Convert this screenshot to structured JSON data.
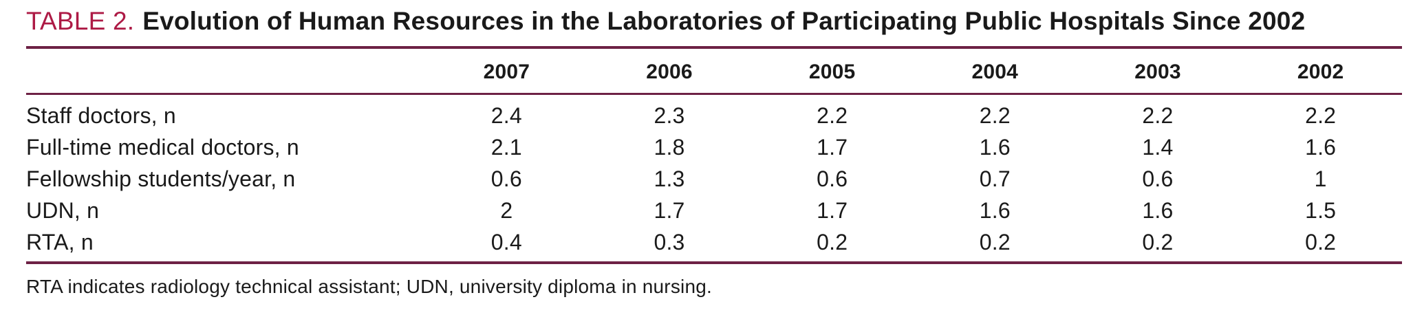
{
  "colors": {
    "accent_label": "#ad1a45",
    "rule": "#6d2145",
    "text": "#1a1a1a",
    "background": "#ffffff"
  },
  "title": {
    "label": "TABLE 2.",
    "text": "Evolution of Human Resources in the Laboratories of Participating Public Hospitals Since 2002"
  },
  "table": {
    "columns": [
      "2007",
      "2006",
      "2005",
      "2004",
      "2003",
      "2002"
    ],
    "rows": [
      {
        "label": "Staff doctors, n",
        "values": [
          "2.4",
          "2.3",
          "2.2",
          "2.2",
          "2.2",
          "2.2"
        ]
      },
      {
        "label": "Full-time medical doctors, n",
        "values": [
          "2.1",
          "1.8",
          "1.7",
          "1.6",
          "1.4",
          "1.6"
        ]
      },
      {
        "label": "Fellowship students/year, n",
        "values": [
          "0.6",
          "1.3",
          "0.6",
          "0.7",
          "0.6",
          "1"
        ]
      },
      {
        "label": "UDN, n",
        "values": [
          "2",
          "1.7",
          "1.7",
          "1.6",
          "1.6",
          "1.5"
        ]
      },
      {
        "label": "RTA, n",
        "values": [
          "0.4",
          "0.3",
          "0.2",
          "0.2",
          "0.2",
          "0.2"
        ]
      }
    ]
  },
  "footnote": "RTA indicates radiology technical assistant; UDN, university diploma in nursing."
}
